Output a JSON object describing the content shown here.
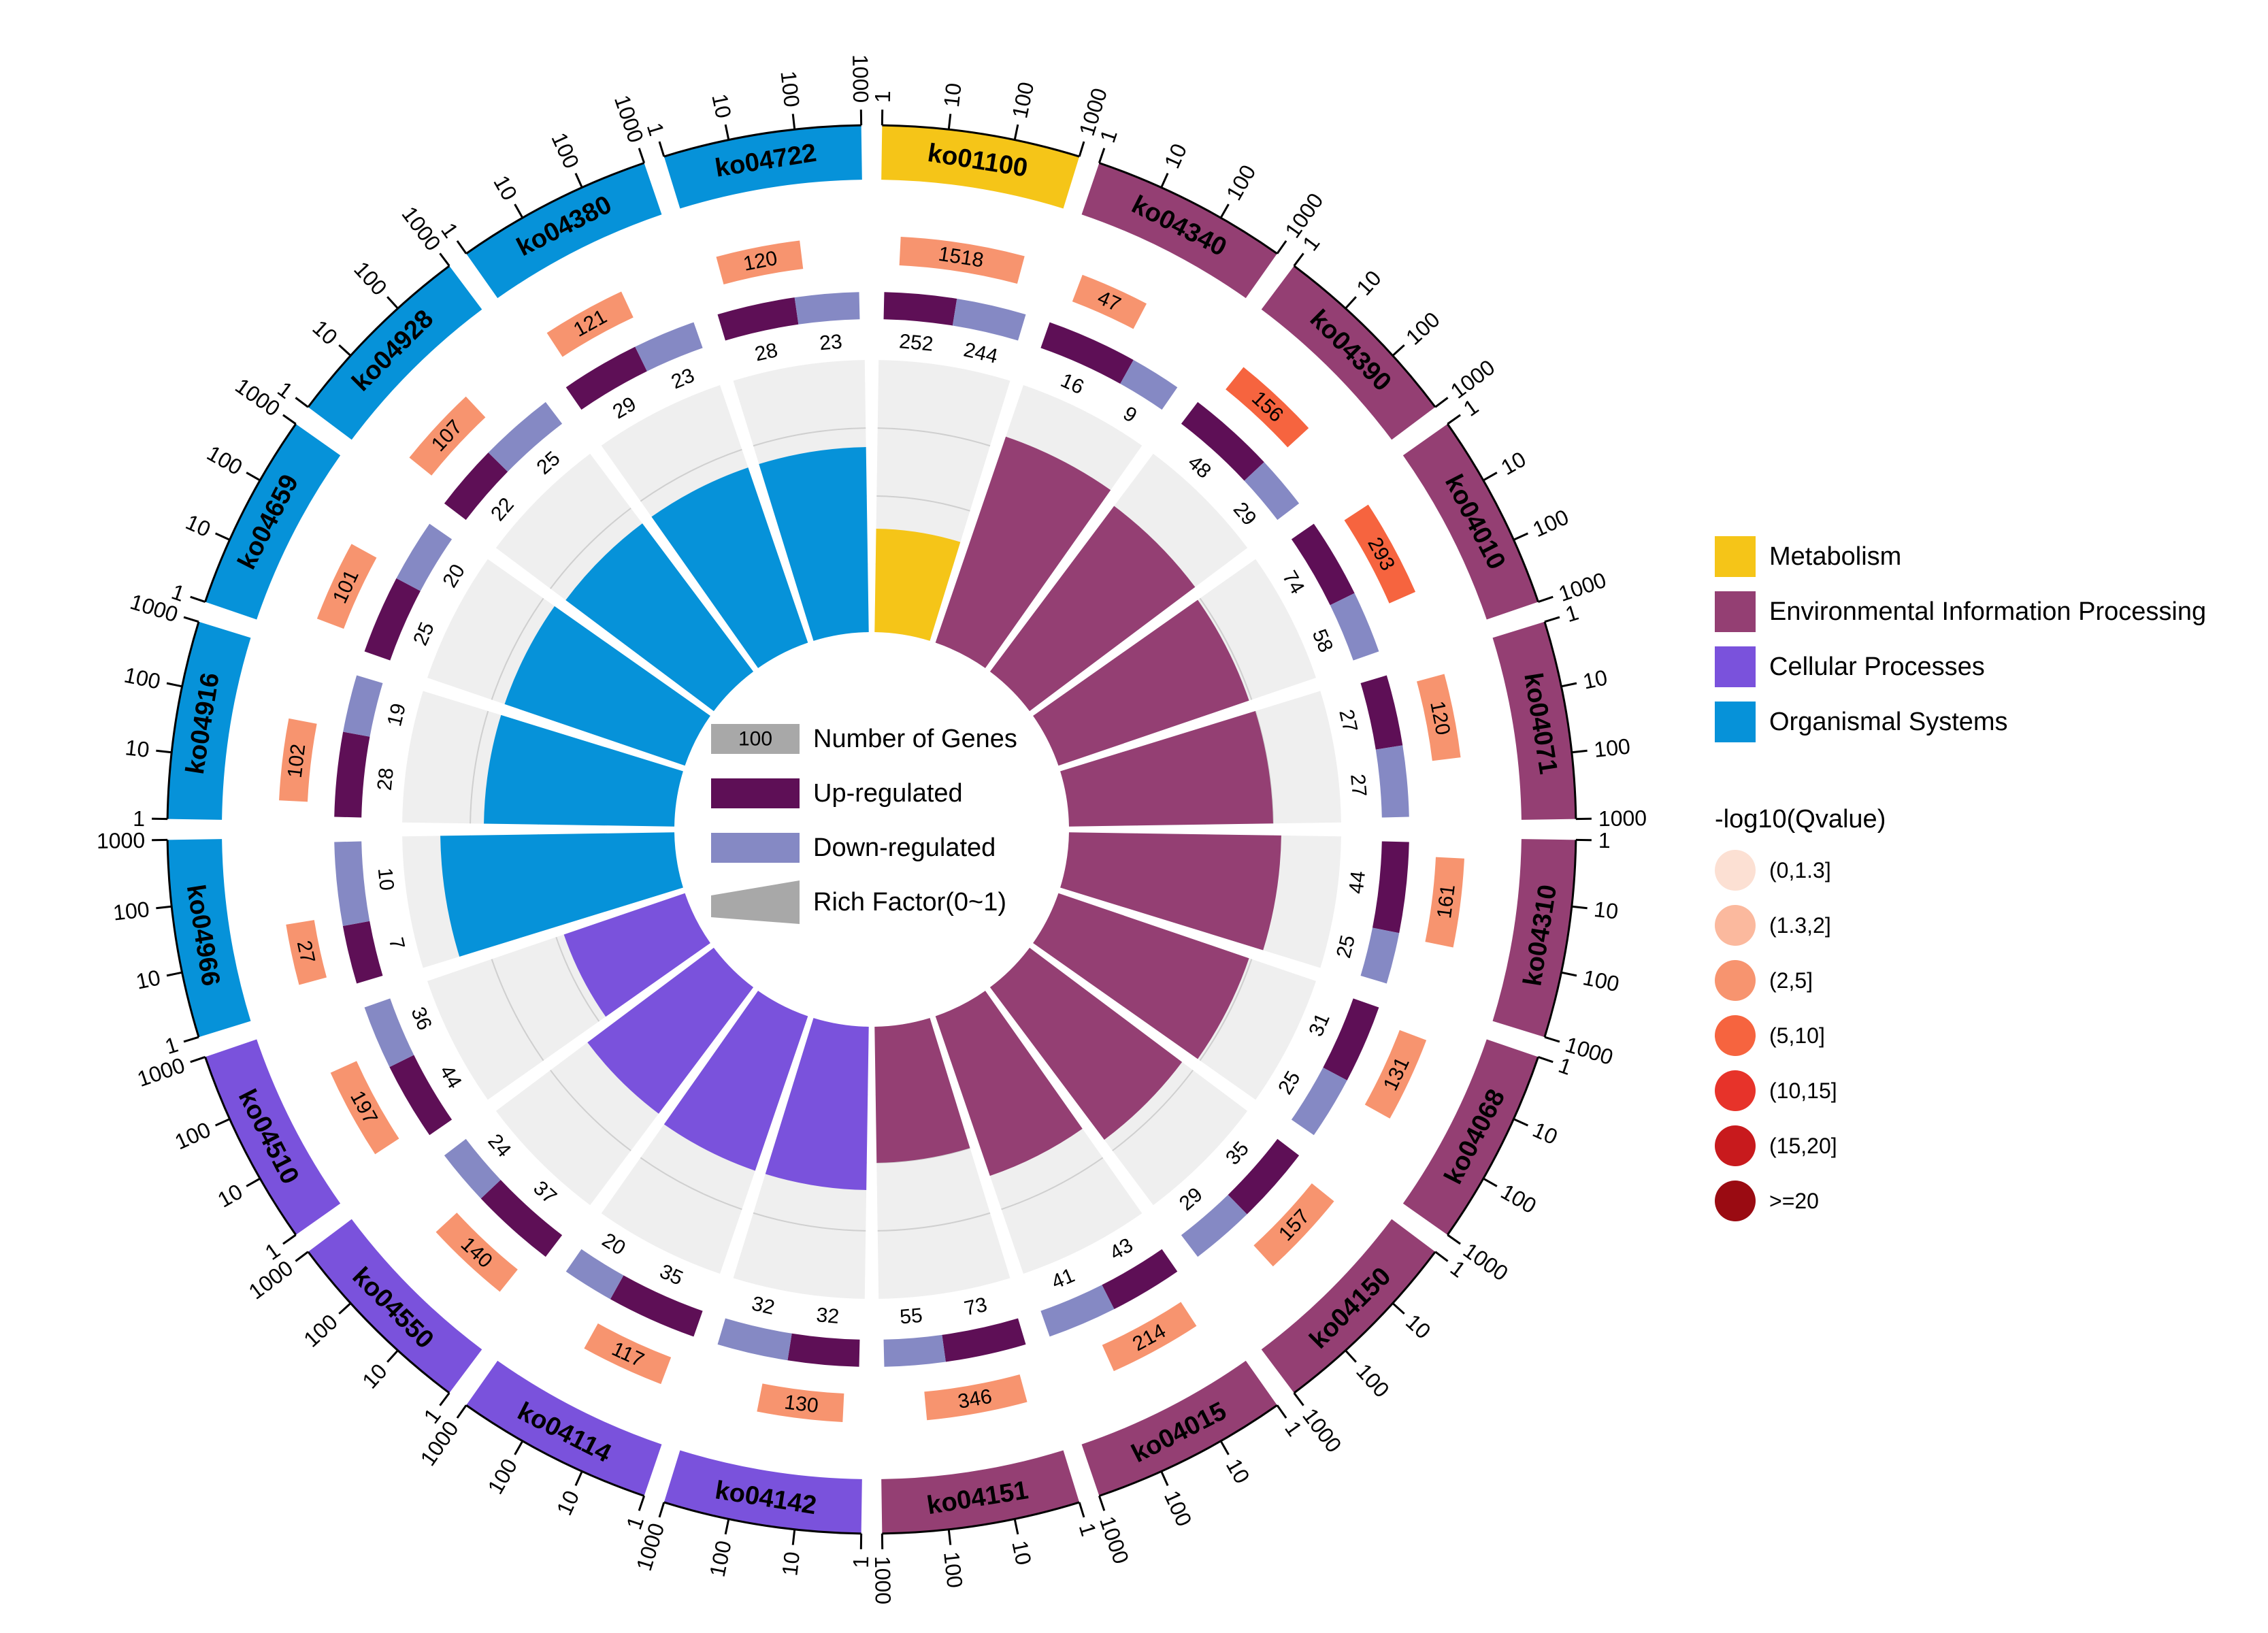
{
  "chart_data": {
    "type": "circos-enrichment",
    "categories": [
      "ko01100",
      "ko04340",
      "ko04390",
      "ko04010",
      "ko04071",
      "ko04310",
      "ko04068",
      "ko04150",
      "ko04015",
      "ko04151",
      "ko04142",
      "ko04114",
      "ko04550",
      "ko04510",
      "ko04966",
      "ko04916",
      "ko04659",
      "ko04928",
      "ko04380",
      "ko04722"
    ],
    "class": [
      "Metabolism",
      "Environmental Information Processing",
      "Environmental Information Processing",
      "Environmental Information Processing",
      "Environmental Information Processing",
      "Environmental Information Processing",
      "Environmental Information Processing",
      "Environmental Information Processing",
      "Environmental Information Processing",
      "Environmental Information Processing",
      "Cellular Processes",
      "Cellular Processes",
      "Cellular Processes",
      "Cellular Processes",
      "Organismal Systems",
      "Organismal Systems",
      "Organismal Systems",
      "Organismal Systems",
      "Organismal Systems",
      "Organismal Systems"
    ],
    "number_of_genes": [
      1518,
      47,
      156,
      293,
      120,
      161,
      131,
      157,
      214,
      346,
      130,
      117,
      140,
      197,
      27,
      102,
      101,
      107,
      121,
      120
    ],
    "qvalue_class": [
      2,
      2,
      3,
      3,
      2,
      2,
      2,
      2,
      2,
      2,
      2,
      2,
      2,
      2,
      2,
      2,
      2,
      2,
      2,
      2
    ],
    "up_regulated": [
      252,
      16,
      48,
      74,
      27,
      44,
      31,
      35,
      43,
      73,
      32,
      35,
      37,
      44,
      7,
      28,
      25,
      22,
      29,
      28
    ],
    "down_regulated": [
      244,
      9,
      29,
      58,
      27,
      25,
      25,
      29,
      41,
      55,
      32,
      20,
      24,
      36,
      10,
      19,
      20,
      25,
      23,
      23
    ],
    "rich_factor": [
      0.38,
      0.8,
      0.76,
      0.74,
      0.75,
      0.78,
      0.74,
      0.7,
      0.62,
      0.5,
      0.6,
      0.6,
      0.58,
      0.47,
      0.86,
      0.7,
      0.7,
      0.68,
      0.68,
      0.68
    ],
    "outer_scale_ticks": [
      "1",
      "10",
      "100",
      "1000"
    ],
    "legend": {
      "classes": [
        "Metabolism",
        "Environmental Information Processing",
        "Cellular Processes",
        "Organismal Systems"
      ],
      "class_colors": [
        "#F5C518",
        "#943F73",
        "#7A52DC",
        "#0692D9"
      ],
      "tracks": [
        "Number of Genes",
        "Up-regulated",
        "Down-regulated",
        "Rich Factor(0~1)"
      ],
      "track_sample_value": "100",
      "track_colors": [
        "#A8A8A8",
        "#5E0F56",
        "#8589C4",
        "#A8A8A8"
      ],
      "qvalue_title": "-log10(Qvalue)",
      "qvalue_bins": [
        "(0,1.3]",
        "(1.3,2]",
        "(2,5]",
        "(5,10]",
        "(10,15]",
        "(15,20]",
        ">=20"
      ],
      "qvalue_colors": [
        "#FCE0D3",
        "#FBB99E",
        "#F7946F",
        "#F6643F",
        "#E7332A",
        "#C81A1D",
        "#9A0B12"
      ]
    }
  }
}
